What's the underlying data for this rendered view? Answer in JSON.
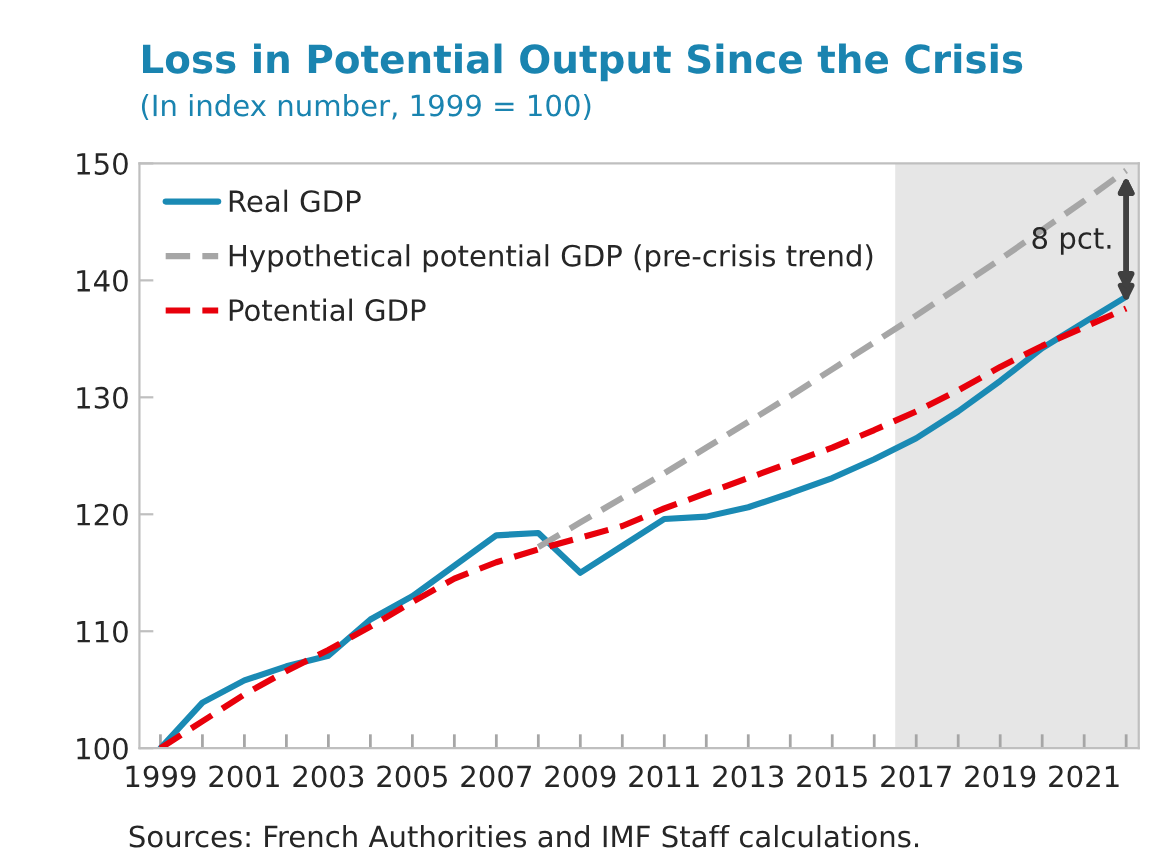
{
  "chart_data": {
    "type": "line",
    "title": "Loss in Potential Output Since the Crisis",
    "subtitle": "(In index number, 1999 = 100)",
    "x": [
      1999,
      2000,
      2001,
      2002,
      2003,
      2004,
      2005,
      2006,
      2007,
      2008,
      2009,
      2010,
      2011,
      2012,
      2013,
      2014,
      2015,
      2016,
      2017,
      2018,
      2019,
      2020,
      2021,
      2022
    ],
    "series": [
      {
        "name": "Real GDP",
        "color": "#1a8ab4",
        "line_style": "solid",
        "values": [
          100,
          103.9,
          105.8,
          107,
          107.9,
          111,
          113,
          115.6,
          118.2,
          118.4,
          115,
          117.3,
          119.6,
          119.8,
          120.6,
          121.8,
          123.1,
          124.7,
          126.5,
          128.8,
          131.4,
          134.2,
          136.4,
          138.6
        ]
      },
      {
        "name": "Hypothetical potential GDP (pre-crisis trend)",
        "color": "#a6a6a6",
        "line_style": "dashed",
        "values": [
          null,
          null,
          null,
          null,
          null,
          null,
          null,
          null,
          null,
          117.2,
          119.3,
          121.4,
          123.5,
          125.7,
          127.9,
          130.1,
          132.4,
          134.7,
          137.0,
          139.4,
          141.8,
          144.3,
          146.8,
          149.4
        ]
      },
      {
        "name": "Potential GDP",
        "color": "#e8000b",
        "line_style": "dashed",
        "values": [
          100,
          102.3,
          104.6,
          106.6,
          108.4,
          110.4,
          112.5,
          114.5,
          115.9,
          117.0,
          118.0,
          119.0,
          120.5,
          121.8,
          123.1,
          124.4,
          125.7,
          127.2,
          128.8,
          130.6,
          132.6,
          134.4,
          136.0,
          137.6
        ]
      }
    ],
    "xlim": [
      1998.5,
      2022.3
    ],
    "xticks": [
      {
        "value": 1999,
        "label": "1999"
      },
      {
        "value": 2000,
        "label": null
      },
      {
        "value": 2001,
        "label": "2001"
      },
      {
        "value": 2002,
        "label": null
      },
      {
        "value": 2003,
        "label": "2003"
      },
      {
        "value": 2004,
        "label": null
      },
      {
        "value": 2005,
        "label": "2005"
      },
      {
        "value": 2006,
        "label": null
      },
      {
        "value": 2007,
        "label": "2007"
      },
      {
        "value": 2008,
        "label": null
      },
      {
        "value": 2009,
        "label": "2009"
      },
      {
        "value": 2010,
        "label": null
      },
      {
        "value": 2011,
        "label": "2011"
      },
      {
        "value": 2012,
        "label": null
      },
      {
        "value": 2013,
        "label": "2013"
      },
      {
        "value": 2014,
        "label": null
      },
      {
        "value": 2015,
        "label": "2015"
      },
      {
        "value": 2016,
        "label": null
      },
      {
        "value": 2017,
        "label": "2017"
      },
      {
        "value": 2018,
        "label": null
      },
      {
        "value": 2019,
        "label": "2019"
      },
      {
        "value": 2020,
        "label": null
      },
      {
        "value": 2021,
        "label": "2021"
      },
      {
        "value": 2022,
        "label": null
      }
    ],
    "ylim": [
      100,
      150
    ],
    "yticks": [
      100,
      110,
      120,
      130,
      140,
      150
    ],
    "bands": [
      {
        "axis": "x",
        "from": 2016.5,
        "to": 2022.3,
        "color": "#e6e6e6"
      }
    ],
    "annotations": [
      {
        "text": "8 pct.",
        "x": 2022,
        "y": 149.4
      },
      "Sources: French Authorities and IMF Staff calculations."
    ],
    "grid": false,
    "legend": "top left",
    "marker": "none"
  }
}
